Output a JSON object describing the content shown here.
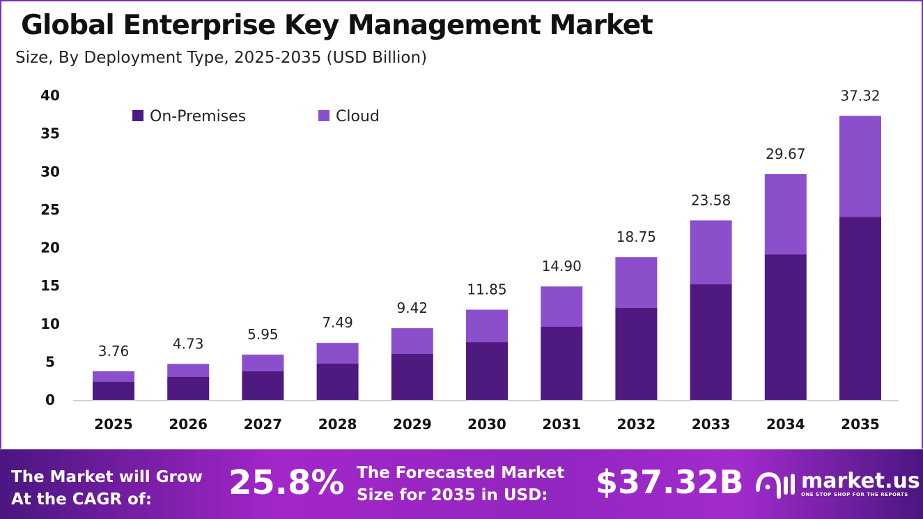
{
  "header": {
    "title": "Global Enterprise Key Management Market",
    "subtitle": "Size, By Deployment Type, 2025-2035 (USD Billion)"
  },
  "chart_data": {
    "type": "bar",
    "stacked": true,
    "categories": [
      "2025",
      "2026",
      "2027",
      "2028",
      "2029",
      "2030",
      "2031",
      "2032",
      "2033",
      "2034",
      "2035"
    ],
    "series": [
      {
        "name": "On-Premises",
        "color": "#4e1a80",
        "values": [
          2.38,
          3.02,
          3.75,
          4.76,
          6.04,
          7.59,
          9.61,
          12.08,
          15.19,
          19.12,
          24.06
        ]
      },
      {
        "name": "Cloud",
        "color": "#8b4fcc",
        "values": [
          1.38,
          1.71,
          2.2,
          2.73,
          3.38,
          4.26,
          5.29,
          6.67,
          8.39,
          10.55,
          13.26
        ]
      }
    ],
    "totals": [
      "3.76",
      "4.73",
      "5.95",
      "7.49",
      "9.42",
      "11.85",
      "14.90",
      "18.75",
      "23.58",
      "29.67",
      "37.32"
    ],
    "yticks": [
      "0",
      "5",
      "10",
      "15",
      "20",
      "25",
      "30",
      "35",
      "40"
    ],
    "ylim": [
      0,
      40
    ],
    "grid": false,
    "legend": "top-left"
  },
  "footer": {
    "cagr_label_1": "The Market will Grow",
    "cagr_label_2": "At the CAGR of:",
    "cagr_value": "25.8%",
    "forecast_label_1": "The Forecasted Market",
    "forecast_label_2": "Size for 2035 in USD:",
    "forecast_value": "$37.32B",
    "brand": "market.us",
    "tagline": "ONE STOP SHOP FOR THE REPORTS"
  }
}
